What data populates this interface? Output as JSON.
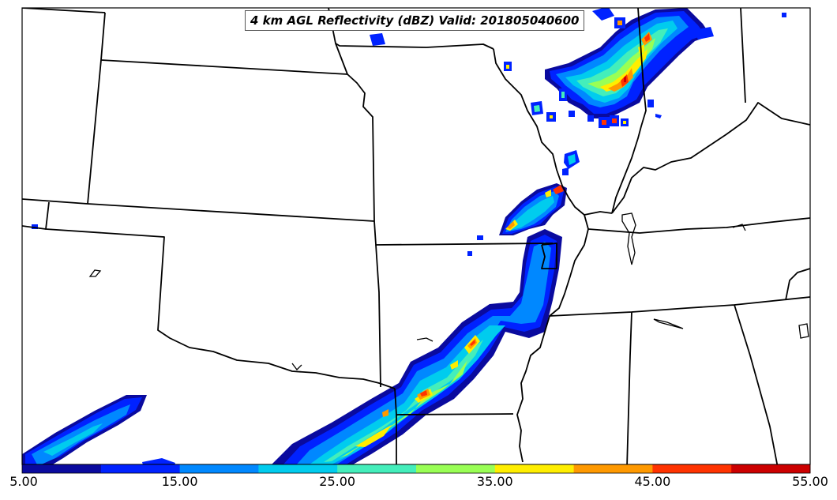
{
  "title": "4 km AGL Reflectivity (dBZ) Valid: 201805040600",
  "colorbar": {
    "tick_labels": [
      "5.00",
      "15.00",
      "25.00",
      "35.00",
      "45.00",
      "55.00"
    ],
    "colors": [
      "#0a0a9e",
      "#0022ff",
      "#0088ff",
      "#00ccee",
      "#44eebb",
      "#99ff55",
      "#ffee00",
      "#ff9900",
      "#ff3300",
      "#cc0000"
    ]
  },
  "field": {
    "name": "reflectivity",
    "units": "dBZ",
    "range": [
      5,
      55
    ],
    "contour_interval": 5
  }
}
